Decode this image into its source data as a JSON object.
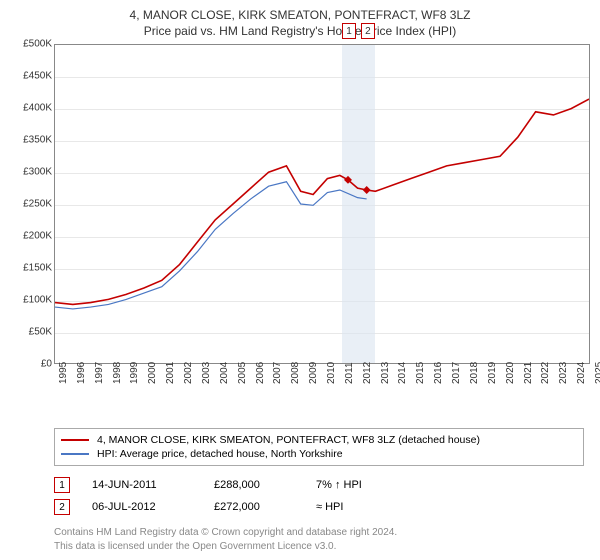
{
  "title_line1": "4, MANOR CLOSE, KIRK SMEATON, PONTEFRACT, WF8 3LZ",
  "title_line2": "Price paid vs. HM Land Registry's House Price Index (HPI)",
  "chart": {
    "type": "line",
    "x_years": [
      1995,
      1996,
      1997,
      1998,
      1999,
      2000,
      2001,
      2002,
      2003,
      2004,
      2005,
      2006,
      2007,
      2008,
      2009,
      2010,
      2011,
      2012,
      2013,
      2014,
      2015,
      2016,
      2017,
      2018,
      2019,
      2020,
      2021,
      2022,
      2023,
      2024,
      2025
    ],
    "ylim": [
      0,
      500000
    ],
    "ytick_step": 50000,
    "ytick_labels": [
      "£0",
      "£50K",
      "£100K",
      "£150K",
      "£200K",
      "£250K",
      "£300K",
      "£350K",
      "£400K",
      "£450K",
      "£500K"
    ],
    "background_color": "#ffffff",
    "grid_color": "#e8e8e8",
    "axis_color": "#888888",
    "series": [
      {
        "name": "price_paid",
        "color": "#c40000",
        "width": 1.6,
        "legend": "4, MANOR CLOSE, KIRK SMEATON, PONTEFRACT, WF8 3LZ (detached house)",
        "points": [
          [
            1995,
            95000
          ],
          [
            1996,
            92000
          ],
          [
            1997,
            95000
          ],
          [
            1998,
            100000
          ],
          [
            1999,
            108000
          ],
          [
            2000,
            118000
          ],
          [
            2001,
            130000
          ],
          [
            2002,
            155000
          ],
          [
            2003,
            190000
          ],
          [
            2004,
            225000
          ],
          [
            2005,
            250000
          ],
          [
            2006,
            275000
          ],
          [
            2007,
            300000
          ],
          [
            2008,
            310000
          ],
          [
            2008.8,
            270000
          ],
          [
            2009.5,
            265000
          ],
          [
            2010.3,
            290000
          ],
          [
            2011,
            295000
          ],
          [
            2011.46,
            288000
          ],
          [
            2012,
            275000
          ],
          [
            2012.51,
            272000
          ],
          [
            2013,
            270000
          ],
          [
            2014,
            280000
          ],
          [
            2015,
            290000
          ],
          [
            2016,
            300000
          ],
          [
            2017,
            310000
          ],
          [
            2018,
            315000
          ],
          [
            2019,
            320000
          ],
          [
            2020,
            325000
          ],
          [
            2021,
            355000
          ],
          [
            2022,
            395000
          ],
          [
            2023,
            390000
          ],
          [
            2024,
            400000
          ],
          [
            2025,
            415000
          ]
        ]
      },
      {
        "name": "hpi",
        "color": "#4a77c4",
        "width": 1.2,
        "legend": "HPI: Average price, detached house, North Yorkshire",
        "points": [
          [
            1995,
            88000
          ],
          [
            1996,
            85000
          ],
          [
            1997,
            88000
          ],
          [
            1998,
            92000
          ],
          [
            1999,
            100000
          ],
          [
            2000,
            110000
          ],
          [
            2001,
            120000
          ],
          [
            2002,
            145000
          ],
          [
            2003,
            175000
          ],
          [
            2004,
            210000
          ],
          [
            2005,
            235000
          ],
          [
            2006,
            258000
          ],
          [
            2007,
            278000
          ],
          [
            2008,
            285000
          ],
          [
            2008.8,
            250000
          ],
          [
            2009.5,
            248000
          ],
          [
            2010.3,
            268000
          ],
          [
            2011,
            272000
          ],
          [
            2012,
            260000
          ],
          [
            2012.51,
            258000
          ]
        ]
      }
    ],
    "sale_markers": [
      {
        "idx": "1",
        "x": 2011.46,
        "y": 288000
      },
      {
        "idx": "2",
        "x": 2012.51,
        "y": 272000
      }
    ],
    "marker_band_color": "#dbe4f0",
    "marker_dot_color": "#c40000",
    "marker_box_border": "#c40000"
  },
  "legend_rows": [
    {
      "color": "#c40000",
      "text": "4, MANOR CLOSE, KIRK SMEATON, PONTEFRACT, WF8 3LZ (detached house)"
    },
    {
      "color": "#4a77c4",
      "text": "HPI: Average price, detached house, North Yorkshire"
    }
  ],
  "sales": [
    {
      "idx": "1",
      "date": "14-JUN-2011",
      "price": "£288,000",
      "delta": "7% ↑ HPI"
    },
    {
      "idx": "2",
      "date": "06-JUL-2012",
      "price": "£272,000",
      "delta": "≈ HPI"
    }
  ],
  "footer_line1": "Contains HM Land Registry data © Crown copyright and database right 2024.",
  "footer_line2": "This data is licensed under the Open Government Licence v3.0."
}
